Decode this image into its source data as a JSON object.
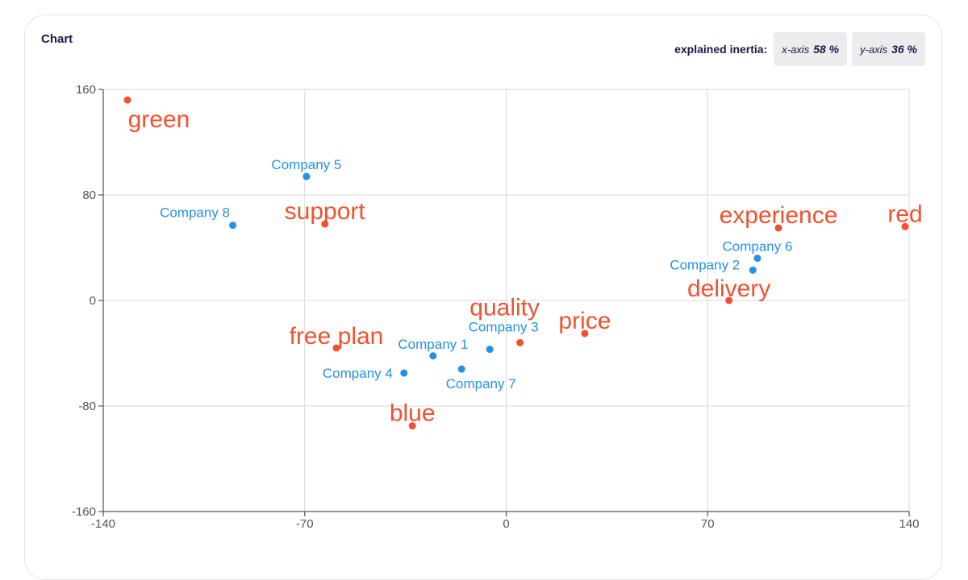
{
  "panel": {
    "title": "Chart"
  },
  "inertia": {
    "label": "explained inertia:",
    "x_axis_name": "x-axis",
    "x_axis_value": "58 %",
    "y_axis_name": "y-axis",
    "y_axis_value": "36 %"
  },
  "colors": {
    "rows": "#2590e8",
    "columns": "#f0522f",
    "grid": "#d9d9d9",
    "axis": "#555555"
  },
  "chart_data": {
    "type": "scatter",
    "title": "",
    "xlabel": "",
    "ylabel": "",
    "xlim": [
      -140,
      140
    ],
    "ylim": [
      -160,
      160
    ],
    "x_ticks": [
      -140,
      -70,
      0,
      70,
      140
    ],
    "y_ticks": [
      160,
      80,
      0,
      -80,
      -160
    ],
    "grid": true,
    "series": [
      {
        "color": "#2590e8",
        "points": [
          {
            "label": "Company 1",
            "x": -25.4,
            "y": -42
          },
          {
            "label": "Company 2",
            "x": 85.7,
            "y": 23
          },
          {
            "label": "Company 3",
            "x": -5.7,
            "y": -37
          },
          {
            "label": "Company 4",
            "x": -35.5,
            "y": -55
          },
          {
            "label": "Company 5",
            "x": -69.4,
            "y": 94
          },
          {
            "label": "Company 6",
            "x": 87.3,
            "y": 32
          },
          {
            "label": "Company 7",
            "x": -15.5,
            "y": -52
          },
          {
            "label": "Company 8",
            "x": -95,
            "y": 57
          }
        ]
      },
      {
        "color": "#f0522f",
        "points": [
          {
            "label": "green",
            "x": -131.6,
            "y": 152
          },
          {
            "label": "support",
            "x": -63,
            "y": 58
          },
          {
            "label": "experience",
            "x": 94.6,
            "y": 55
          },
          {
            "label": "red",
            "x": 138.6,
            "y": 56
          },
          {
            "label": "delivery",
            "x": 77.4,
            "y": 0
          },
          {
            "label": "quality",
            "x": 4.8,
            "y": -32
          },
          {
            "label": "price",
            "x": 27.3,
            "y": -25
          },
          {
            "label": "free plan",
            "x": -59,
            "y": -36
          },
          {
            "label": "blue",
            "x": -32.6,
            "y": -95
          }
        ]
      }
    ]
  }
}
